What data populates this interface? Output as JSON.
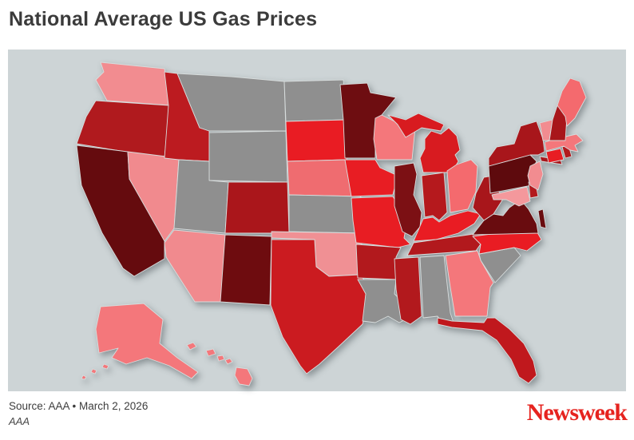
{
  "title": "National Average US Gas Prices",
  "footer": {
    "source_line": "Source: AAA • March 2, 2026",
    "credit_line": "AAA",
    "brand": "Newsweek"
  },
  "chart_data": {
    "type": "choropleth",
    "title": "National Average US Gas Prices",
    "region": "United States (50 states, Alaska and Hawaii insets)",
    "legend": "none shown",
    "encoding_note": "fill color encodes average gas price: darker red = higher, light pink = lower, gray = no data",
    "background_color": "#cdd4d6",
    "state_border_color": "#d8dddd",
    "no_data_color": "#8f8f8f",
    "brand_color": "#e6231f",
    "states": [
      {
        "id": "WA",
        "name": "Washington",
        "color": "#f28c90",
        "tier": "very-low"
      },
      {
        "id": "OR",
        "name": "Oregon",
        "color": "#b01a1e",
        "tier": "high"
      },
      {
        "id": "CA",
        "name": "California",
        "color": "#650b0e",
        "tier": "highest"
      },
      {
        "id": "NV",
        "name": "Nevada",
        "color": "#f18a8e",
        "tier": "very-low"
      },
      {
        "id": "ID",
        "name": "Idaho",
        "color": "#bc1b20",
        "tier": "high"
      },
      {
        "id": "MT",
        "name": "Montana",
        "color": "#8f8f8f",
        "tier": "no-data"
      },
      {
        "id": "WY",
        "name": "Wyoming",
        "color": "#8f8f8f",
        "tier": "no-data"
      },
      {
        "id": "UT",
        "name": "Utah",
        "color": "#8f8f8f",
        "tier": "no-data"
      },
      {
        "id": "CO",
        "name": "Colorado",
        "color": "#aa161b",
        "tier": "high"
      },
      {
        "id": "AZ",
        "name": "Arizona",
        "color": "#f18a8e",
        "tier": "very-low"
      },
      {
        "id": "NM",
        "name": "New Mexico",
        "color": "#6e0c0f",
        "tier": "highest"
      },
      {
        "id": "ND",
        "name": "North Dakota",
        "color": "#8f8f8f",
        "tier": "no-data"
      },
      {
        "id": "SD",
        "name": "South Dakota",
        "color": "#e91c23",
        "tier": "medium"
      },
      {
        "id": "NE",
        "name": "Nebraska",
        "color": "#ef6c70",
        "tier": "low"
      },
      {
        "id": "KS",
        "name": "Kansas",
        "color": "#8f8f8f",
        "tier": "no-data"
      },
      {
        "id": "OK",
        "name": "Oklahoma",
        "color": "#f09094",
        "tier": "lowest"
      },
      {
        "id": "TX",
        "name": "Texas",
        "color": "#cb1b20",
        "tier": "medium-high"
      },
      {
        "id": "MN",
        "name": "Minnesota",
        "color": "#6e0d11",
        "tier": "highest"
      },
      {
        "id": "IA",
        "name": "Iowa",
        "color": "#e81d23",
        "tier": "medium"
      },
      {
        "id": "MO",
        "name": "Missouri",
        "color": "#e81d23",
        "tier": "medium"
      },
      {
        "id": "AR",
        "name": "Arkansas",
        "color": "#b2191d",
        "tier": "high"
      },
      {
        "id": "LA",
        "name": "Louisiana",
        "color": "#8f8f8f",
        "tier": "no-data"
      },
      {
        "id": "WI",
        "name": "Wisconsin",
        "color": "#f4777b",
        "tier": "low"
      },
      {
        "id": "IL",
        "name": "Illinois",
        "color": "#7c1014",
        "tier": "highest"
      },
      {
        "id": "MI",
        "name": "Michigan",
        "color": "#d81b20",
        "tier": "medium-high"
      },
      {
        "id": "IN",
        "name": "Indiana",
        "color": "#b5191d",
        "tier": "high"
      },
      {
        "id": "OH",
        "name": "Ohio",
        "color": "#f46a6e",
        "tier": "low"
      },
      {
        "id": "KY",
        "name": "Kentucky",
        "color": "#e91c23",
        "tier": "medium"
      },
      {
        "id": "TN",
        "name": "Tennessee",
        "color": "#b2191d",
        "tier": "high"
      },
      {
        "id": "MS",
        "name": "Mississippi",
        "color": "#b2191d",
        "tier": "high"
      },
      {
        "id": "AL",
        "name": "Alabama",
        "color": "#8f8f8f",
        "tier": "no-data"
      },
      {
        "id": "GA",
        "name": "Georgia",
        "color": "#f4777b",
        "tier": "low"
      },
      {
        "id": "FL",
        "name": "Florida",
        "color": "#c0181d",
        "tier": "medium-high"
      },
      {
        "id": "SC",
        "name": "South Carolina",
        "color": "#8f8f8f",
        "tier": "no-data"
      },
      {
        "id": "NC",
        "name": "North Carolina",
        "color": "#e91c23",
        "tier": "medium"
      },
      {
        "id": "VA",
        "name": "Virginia",
        "color": "#690c0f",
        "tier": "highest"
      },
      {
        "id": "WV",
        "name": "West Virginia",
        "color": "#a8161b",
        "tier": "high"
      },
      {
        "id": "PA",
        "name": "Pennsylvania",
        "color": "#5e0a0d",
        "tier": "highest"
      },
      {
        "id": "NY",
        "name": "New York",
        "color": "#a8161b",
        "tier": "high"
      },
      {
        "id": "MD",
        "name": "Maryland",
        "color": "#f4989c",
        "tier": "lowest"
      },
      {
        "id": "DE",
        "name": "Delaware",
        "color": "#b2191d",
        "tier": "high"
      },
      {
        "id": "NJ",
        "name": "New Jersey",
        "color": "#f28c90",
        "tier": "very-low"
      },
      {
        "id": "CT",
        "name": "Connecticut",
        "color": "#e81d23",
        "tier": "medium"
      },
      {
        "id": "RI",
        "name": "Rhode Island",
        "color": "#b2191d",
        "tier": "high"
      },
      {
        "id": "MA",
        "name": "Massachusetts",
        "color": "#f4777b",
        "tier": "low"
      },
      {
        "id": "VT",
        "name": "Vermont",
        "color": "#f28c90",
        "tier": "very-low"
      },
      {
        "id": "NH",
        "name": "New Hampshire",
        "color": "#a8161b",
        "tier": "high"
      },
      {
        "id": "ME",
        "name": "Maine",
        "color": "#f46a6e",
        "tier": "low"
      },
      {
        "id": "AK",
        "name": "Alaska",
        "color": "#f4777b",
        "tier": "low"
      },
      {
        "id": "HI",
        "name": "Hawaii",
        "color": "#f4777b",
        "tier": "low"
      }
    ]
  }
}
